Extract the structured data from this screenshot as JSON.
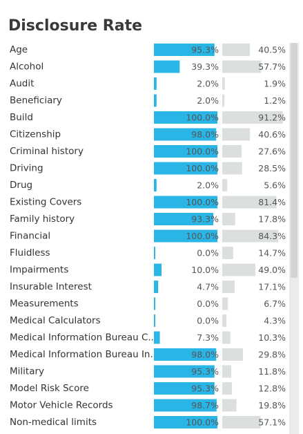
{
  "chart_data": {
    "type": "bar",
    "title": "Disclosure Rate",
    "categories": [
      "Age",
      "Alcohol",
      "Audit",
      "Beneficiary",
      "Build",
      "Citizenship",
      "Criminal history",
      "Driving",
      "Drug",
      "Existing Covers",
      "Family history",
      "Financial",
      "Fluidless",
      "Impairments",
      "Insurable Interest",
      "Measurements",
      "Medical Calculators",
      "Medical Information Bureau C..",
      "Medical Information Bureau In..",
      "Military",
      "Model Risk Score",
      "Motor Vehicle Records",
      "Non-medical limits"
    ],
    "series": [
      {
        "color": "#29b6e6",
        "values": [
          95.3,
          39.3,
          2.0,
          2.0,
          100.0,
          98.0,
          100.0,
          100.0,
          2.0,
          100.0,
          93.3,
          100.0,
          0.0,
          10.0,
          4.7,
          0.0,
          0.0,
          7.3,
          98.0,
          95.3,
          95.3,
          98.7,
          100.0
        ],
        "value_labels": [
          "95.3%",
          "39.3%",
          "2.0%",
          "2.0%",
          "100.0%",
          "98.0%",
          "100.0%",
          "100.0%",
          "2.0%",
          "100.0%",
          "93.3%",
          "100.0%",
          "0.0%",
          "10.0%",
          "4.7%",
          "0.0%",
          "0.0%",
          "7.3%",
          "98.0%",
          "95.3%",
          "95.3%",
          "98.7%",
          "100.0%"
        ]
      },
      {
        "color": "#dcdfdf",
        "values": [
          40.5,
          57.7,
          1.9,
          1.2,
          91.2,
          40.6,
          27.6,
          28.5,
          5.6,
          81.4,
          17.8,
          84.3,
          14.7,
          49.0,
          17.1,
          6.7,
          4.3,
          10.3,
          29.8,
          11.8,
          12.8,
          19.8,
          57.1
        ],
        "value_labels": [
          "40.5%",
          "57.7%",
          "1.9%",
          "1.2%",
          "91.2%",
          "40.6%",
          "27.6%",
          "28.5%",
          "5.6%",
          "81.4%",
          "17.8%",
          "84.3%",
          "14.7%",
          "49.0%",
          "17.1%",
          "6.7%",
          "4.3%",
          "10.3%",
          "29.8%",
          "11.8%",
          "12.8%",
          "19.8%",
          "57.1%"
        ]
      }
    ]
  }
}
